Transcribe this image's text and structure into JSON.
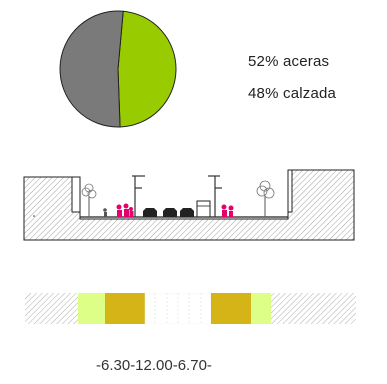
{
  "chart_data": {
    "type": "pie",
    "slices": [
      {
        "label": "aceras",
        "value": 52,
        "color": "#7a7a7a"
      },
      {
        "label": "calzada",
        "value": 48,
        "color": "#99cc00"
      }
    ]
  },
  "legend": {
    "line1": "52% aceras",
    "line2": "48% calzada"
  },
  "dimensions": {
    "text": "-6.30-12.00-6.70-"
  },
  "colors": {
    "sidewalk_grey": "#bdbdbd",
    "tree_green": "#ddff88",
    "parking_yellow": "#d4b417",
    "road_white": "#ffffff"
  }
}
